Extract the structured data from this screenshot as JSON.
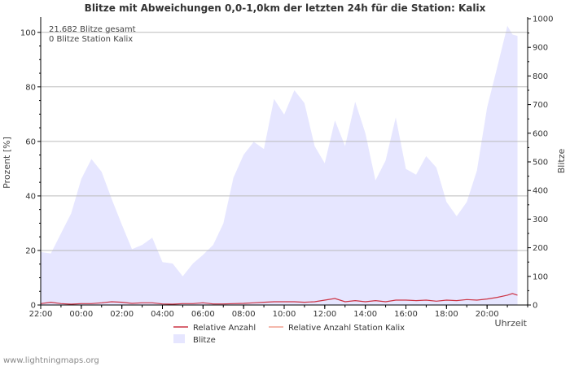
{
  "chart_data": {
    "type": "area",
    "title": "Blitze mit Abweichungen 0,0-1,0km der letzten 24h für die Station: Kalix",
    "ylabel_left": "Prozent   [%]",
    "ylabel_right": "Blitze",
    "xlabel": "Uhrzeit",
    "ylim_left": [
      0,
      105
    ],
    "ylim_right": [
      0,
      1000
    ],
    "yticks_left": [
      0,
      20,
      40,
      60,
      80,
      100
    ],
    "yticks_right": [
      0,
      100,
      200,
      300,
      400,
      500,
      600,
      700,
      800,
      900,
      1000
    ],
    "x_hour_start": 22,
    "x_hour_end": 46,
    "xticks": [
      {
        "hour": 22,
        "label": "22:00"
      },
      {
        "hour": 24,
        "label": "00:00"
      },
      {
        "hour": 26,
        "label": "02:00"
      },
      {
        "hour": 28,
        "label": "04:00"
      },
      {
        "hour": 30,
        "label": "06:00"
      },
      {
        "hour": 32,
        "label": "08:00"
      },
      {
        "hour": 34,
        "label": "10:00"
      },
      {
        "hour": 36,
        "label": "12:00"
      },
      {
        "hour": 38,
        "label": "14:00"
      },
      {
        "hour": 40,
        "label": "16:00"
      },
      {
        "hour": 42,
        "label": "18:00"
      },
      {
        "hour": 44,
        "label": "20:00"
      }
    ],
    "annotations": [
      "21.682 Blitze gesamt",
      "0 Blitze Station Kalix"
    ],
    "series": [
      {
        "name": "Blitze",
        "axis": "right",
        "color": "#e6e6ff",
        "x": [
          22.0,
          22.5,
          23.0,
          23.5,
          24.0,
          24.5,
          25.0,
          25.5,
          26.0,
          26.5,
          27.0,
          27.5,
          28.0,
          28.5,
          29.0,
          29.5,
          30.0,
          30.5,
          31.0,
          31.5,
          32.0,
          32.5,
          33.0,
          33.5,
          34.0,
          34.5,
          35.0,
          35.5,
          36.0,
          36.5,
          37.0,
          37.5,
          38.0,
          38.5,
          39.0,
          39.5,
          40.0,
          40.5,
          41.0,
          41.5,
          42.0,
          42.5,
          43.0,
          43.5,
          44.0,
          44.5,
          45.0,
          45.25,
          45.5
        ],
        "values": [
          185,
          180,
          250,
          320,
          440,
          510,
          465,
          370,
          280,
          195,
          210,
          235,
          150,
          145,
          100,
          145,
          175,
          210,
          285,
          445,
          525,
          570,
          545,
          720,
          665,
          750,
          705,
          555,
          495,
          645,
          555,
          710,
          600,
          435,
          505,
          655,
          475,
          455,
          520,
          480,
          360,
          310,
          360,
          470,
          690,
          830,
          975,
          945,
          940
        ]
      },
      {
        "name": "Relative Anzahl",
        "axis": "left",
        "color": "#cc3344",
        "x": [
          22.0,
          22.5,
          23.0,
          23.5,
          24.0,
          24.5,
          25.0,
          25.5,
          26.0,
          26.5,
          27.0,
          27.5,
          28.0,
          28.5,
          29.0,
          29.5,
          30.0,
          30.5,
          31.0,
          31.5,
          32.0,
          32.5,
          33.0,
          33.5,
          34.0,
          34.5,
          35.0,
          35.5,
          36.0,
          36.5,
          37.0,
          37.5,
          38.0,
          38.5,
          39.0,
          39.5,
          40.0,
          40.5,
          41.0,
          41.5,
          42.0,
          42.5,
          43.0,
          43.5,
          44.0,
          44.5,
          45.0,
          45.25,
          45.5
        ],
        "values": [
          0.5,
          1.0,
          0.5,
          0.3,
          0.5,
          0.5,
          0.8,
          1.2,
          1.0,
          0.6,
          0.8,
          0.8,
          0.4,
          0.3,
          0.5,
          0.5,
          0.8,
          0.4,
          0.4,
          0.5,
          0.6,
          0.8,
          1.0,
          1.2,
          1.2,
          1.2,
          1.0,
          1.2,
          1.8,
          2.4,
          1.2,
          1.6,
          1.2,
          1.6,
          1.2,
          1.8,
          1.8,
          1.6,
          1.8,
          1.4,
          1.8,
          1.6,
          2.0,
          1.8,
          2.2,
          2.8,
          3.6,
          4.2,
          3.6
        ]
      },
      {
        "name": "Relative Anzahl Station Kalix",
        "axis": "left",
        "color": "#f0a090",
        "x": [],
        "values": []
      }
    ],
    "legend": [
      {
        "label": "Relative Anzahl",
        "type": "line",
        "color": "#cc3344"
      },
      {
        "label": "Relative Anzahl Station Kalix",
        "type": "line",
        "color": "#f0a090"
      },
      {
        "label": "Blitze",
        "type": "area",
        "color": "#e6e6ff"
      }
    ]
  },
  "footer": "www.lightningmaps.org",
  "colors": {
    "grid": "#bbbbbb",
    "axis": "#000000",
    "text": "#333333"
  }
}
